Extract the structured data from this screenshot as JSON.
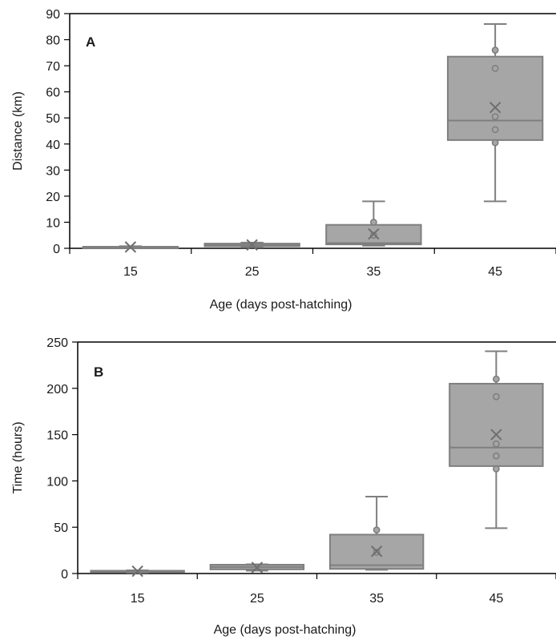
{
  "chart_data": [
    {
      "type": "box",
      "panel_label": "A",
      "xlabel": "Age (days post-hatching)",
      "ylabel": "Distance (km)",
      "ylim": [
        0,
        90
      ],
      "yticks": [
        0,
        10,
        20,
        30,
        40,
        50,
        60,
        70,
        80,
        90
      ],
      "categories": [
        "15",
        "25",
        "35",
        "45"
      ],
      "boxes": [
        {
          "category": "15",
          "min": 0.1,
          "q1": 0.2,
          "median": 0.3,
          "q3": 0.6,
          "max": 0.8,
          "mean": 0.5,
          "points": []
        },
        {
          "category": "25",
          "min": 0.4,
          "q1": 0.8,
          "median": 1.2,
          "q3": 1.8,
          "max": 2.2,
          "mean": 1.3,
          "points": []
        },
        {
          "category": "35",
          "min": 1.0,
          "q1": 1.5,
          "median": 2.0,
          "q3": 9.0,
          "max": 18.0,
          "mean": 5.5,
          "points": [
            10.0,
            5.0
          ]
        },
        {
          "category": "45",
          "min": 18.0,
          "q1": 41.5,
          "median": 49.0,
          "q3": 73.5,
          "max": 86.0,
          "mean": 54.0,
          "points": [
            76.0,
            69.0,
            50.5,
            45.5,
            40.5
          ]
        }
      ],
      "grid": false,
      "colors": {
        "box_fill": "#a6a6a6",
        "box_stroke": "#7f7f7f",
        "axis": "#000000"
      }
    },
    {
      "type": "box",
      "panel_label": "B",
      "xlabel": "Age (days post-hatching)",
      "ylabel": "Time (hours)",
      "ylim": [
        0,
        250
      ],
      "yticks": [
        0,
        50,
        100,
        150,
        200,
        250
      ],
      "categories": [
        "15",
        "25",
        "35",
        "45"
      ],
      "boxes": [
        {
          "category": "15",
          "min": 1.0,
          "q1": 1.5,
          "median": 2.0,
          "q3": 3.0,
          "max": 3.5,
          "mean": 2.5,
          "points": []
        },
        {
          "category": "25",
          "min": 3.0,
          "q1": 4.5,
          "median": 7.0,
          "q3": 9.5,
          "max": 10.0,
          "mean": 6.5,
          "points": []
        },
        {
          "category": "35",
          "min": 4.0,
          "q1": 5.0,
          "median": 9.0,
          "q3": 42.0,
          "max": 83.0,
          "mean": 24.0,
          "points": [
            47.0,
            23.0
          ]
        },
        {
          "category": "45",
          "min": 49.0,
          "q1": 116.0,
          "median": 136.0,
          "q3": 205.0,
          "max": 240.0,
          "mean": 150.0,
          "points": [
            210.0,
            191.0,
            140.0,
            127.0,
            113.0
          ]
        }
      ],
      "grid": false,
      "colors": {
        "box_fill": "#a6a6a6",
        "box_stroke": "#7f7f7f",
        "axis": "#000000"
      }
    }
  ]
}
